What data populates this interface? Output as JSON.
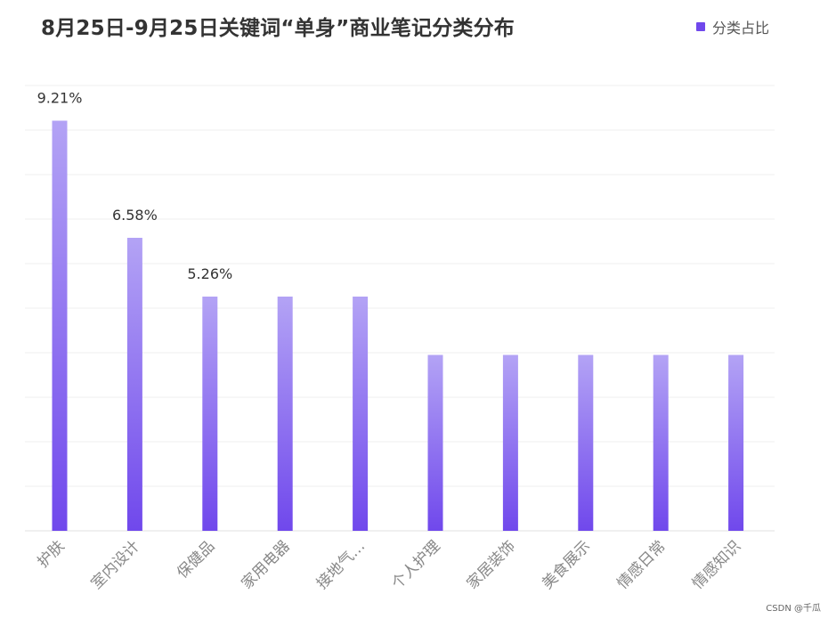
{
  "chart_data": {
    "type": "bar",
    "title": "8月25日-9月25日关键词“单身”商业笔记分类分布",
    "categories": [
      "护肤",
      "室内设计",
      "保健品",
      "家用电器",
      "接地气…",
      "个人护理",
      "家居装饰",
      "美食展示",
      "情感日常",
      "情感知识"
    ],
    "series": [
      {
        "name": "分类占比",
        "values": [
          9.21,
          6.58,
          5.26,
          5.26,
          5.26,
          3.95,
          3.95,
          3.95,
          3.95,
          3.95
        ],
        "data_labels": [
          "9.21%",
          "6.58%",
          "5.26%",
          "",
          "",
          "",
          "",
          "",
          "",
          ""
        ]
      }
    ],
    "ylim": [
      0,
      10
    ],
    "grid": true,
    "legend_position": "top-right",
    "bar_color_top": "#b3a3f5",
    "bar_color_bottom": "#7048ec"
  },
  "legend": {
    "label": "分类占比"
  },
  "watermark": "CSDN @千瓜"
}
